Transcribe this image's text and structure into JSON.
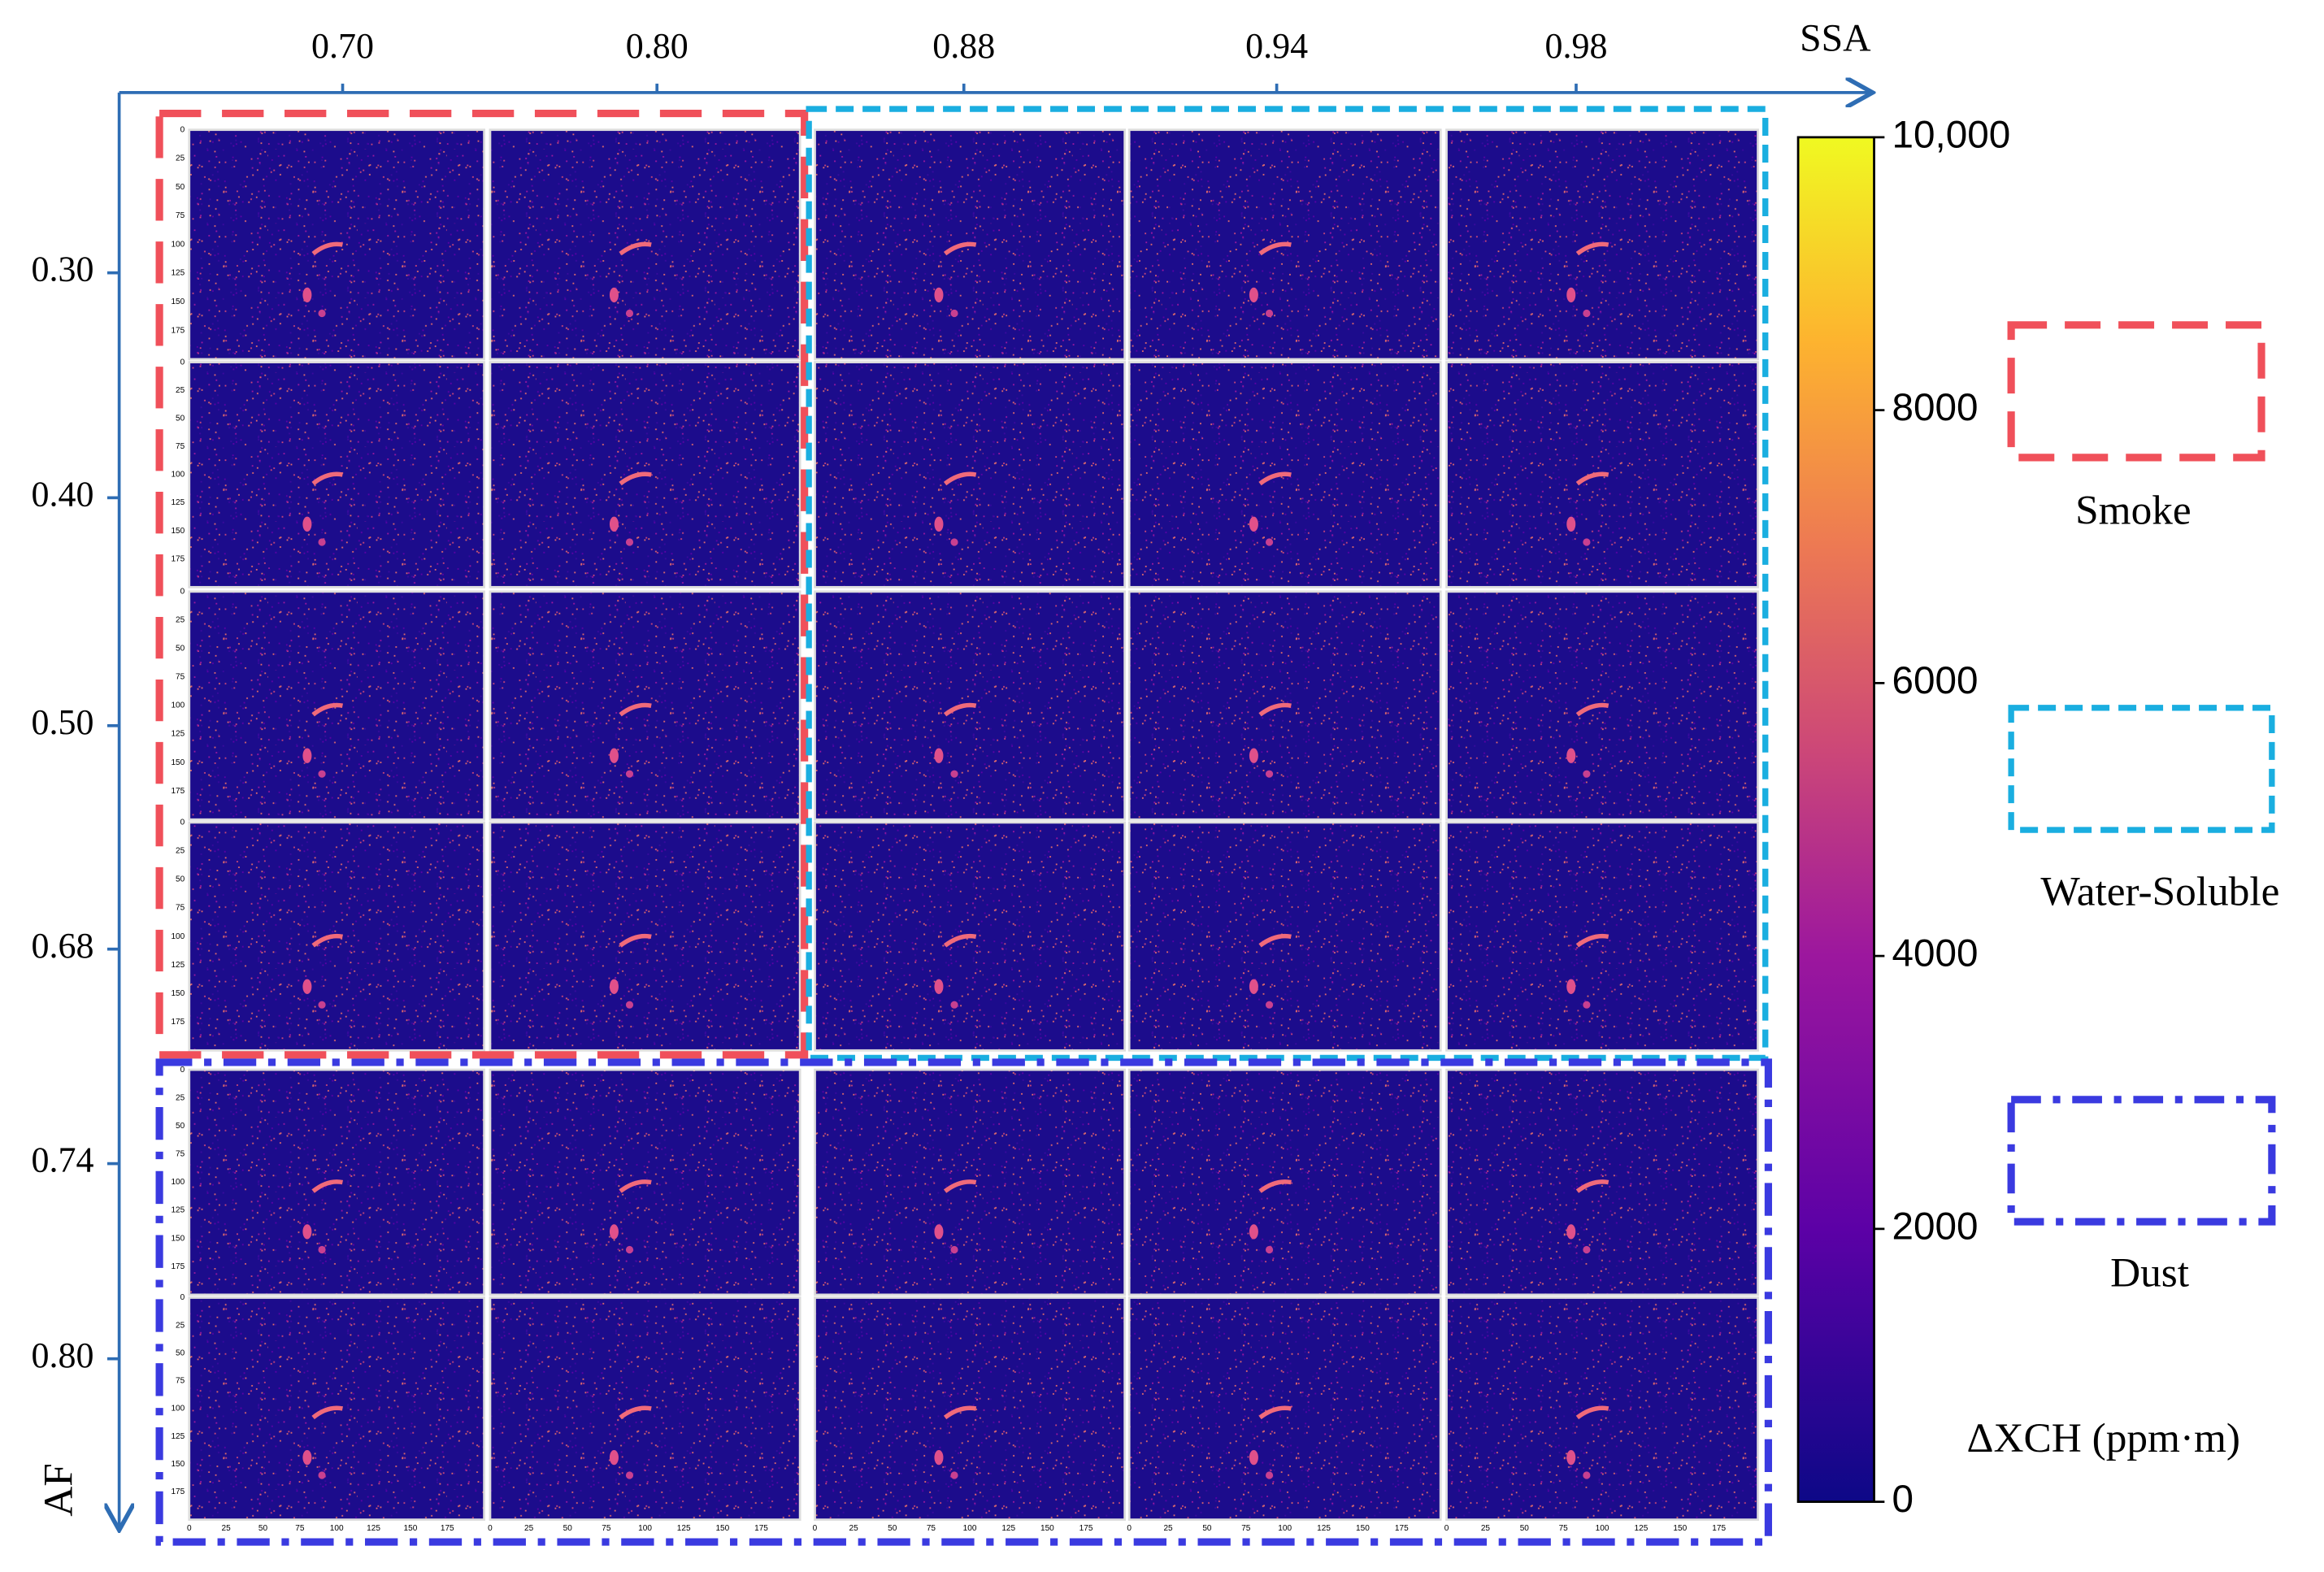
{
  "top_axis": {
    "label": "SSA",
    "ticks": [
      "0.70",
      "0.80",
      "0.88",
      "0.94",
      "0.98"
    ]
  },
  "left_axis": {
    "label": "AF",
    "ticks": [
      "0.30",
      "0.40",
      "0.50",
      "0.68",
      "0.74",
      "0.80"
    ]
  },
  "panel_axis": {
    "ticks": [
      0,
      25,
      50,
      75,
      100,
      125,
      150,
      175
    ]
  },
  "colorbar": {
    "label": "ΔXCH (ppm·m)",
    "range": [
      0,
      10000
    ],
    "ticks": [
      0,
      2000,
      4000,
      6000,
      8000,
      {
        "value": 10000,
        "label": "10,000"
      }
    ]
  },
  "legend": [
    {
      "label": "Smoke"
    },
    {
      "label": "Water-Soluble"
    },
    {
      "label": "Dust"
    }
  ]
}
